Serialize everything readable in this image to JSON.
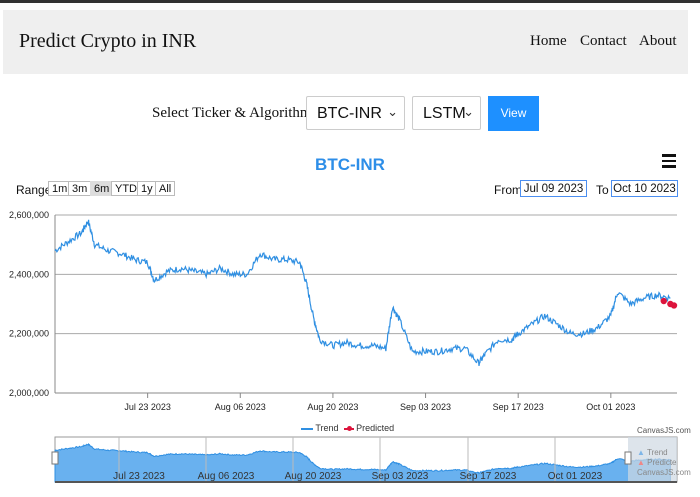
{
  "navbar": {
    "brand": "Predict Crypto in INR",
    "links": [
      {
        "label": "Home"
      },
      {
        "label": "Contact"
      },
      {
        "label": "About"
      }
    ]
  },
  "selector": {
    "label": "Select Ticker & Algorithm :",
    "ticker_value": "BTC-INR",
    "algorithm_value": "LSTM",
    "view_label": "View"
  },
  "chart": {
    "range_label": "Range",
    "range_buttons": [
      "1m",
      "3m",
      "6m",
      "YTD",
      "1y",
      "All"
    ],
    "selected_range": "6m",
    "from_label": "From",
    "from_value": "Jul 09 2023",
    "to_label": "To",
    "to_value": "Oct 10 2023",
    "legend_trend": "Trend",
    "legend_predicted": "Predicted",
    "credit": "CanvasJS.com",
    "navigator_legend_trend": "Trend",
    "navigator_legend_predicted": "Predicte",
    "navigator_credit": "CanvasJS.com"
  },
  "colors": {
    "trend": "#2f8fe2",
    "predicted": "#dc143c",
    "accent": "#1e90ff",
    "navbar_bg": "#efefef"
  },
  "chart_data": {
    "type": "line",
    "title": "BTC-INR",
    "xlabel": "",
    "ylabel": "",
    "ylim": [
      2000000,
      2600000
    ],
    "y_ticks": [
      "2,000,000",
      "2,200,000",
      "2,400,000",
      "2,600,000"
    ],
    "x_ticks": [
      "Jul 23 2023",
      "Aug 06 2023",
      "Aug 20 2023",
      "Sep 03 2023",
      "Sep 17 2023",
      "Oct 01 2023"
    ],
    "grid": true,
    "legend_position": "bottom",
    "series": [
      {
        "name": "Trend",
        "x": [
          "2023-07-09",
          "2023-07-11",
          "2023-07-13",
          "2023-07-14",
          "2023-07-15",
          "2023-07-17",
          "2023-07-19",
          "2023-07-21",
          "2023-07-23",
          "2023-07-24",
          "2023-07-26",
          "2023-07-28",
          "2023-07-30",
          "2023-08-01",
          "2023-08-03",
          "2023-08-05",
          "2023-08-07",
          "2023-08-09",
          "2023-08-11",
          "2023-08-13",
          "2023-08-15",
          "2023-08-16",
          "2023-08-17",
          "2023-08-18",
          "2023-08-20",
          "2023-08-22",
          "2023-08-24",
          "2023-08-26",
          "2023-08-28",
          "2023-08-29",
          "2023-08-30",
          "2023-09-01",
          "2023-09-03",
          "2023-09-05",
          "2023-09-07",
          "2023-09-09",
          "2023-09-11",
          "2023-09-12",
          "2023-09-14",
          "2023-09-16",
          "2023-09-17",
          "2023-09-19",
          "2023-09-21",
          "2023-09-23",
          "2023-09-25",
          "2023-09-27",
          "2023-09-29",
          "2023-10-01",
          "2023-10-02",
          "2023-10-04",
          "2023-10-06",
          "2023-10-08",
          "2023-10-10"
        ],
        "y": [
          2480000,
          2510000,
          2540000,
          2580000,
          2500000,
          2480000,
          2470000,
          2450000,
          2440000,
          2380000,
          2410000,
          2420000,
          2410000,
          2400000,
          2420000,
          2400000,
          2400000,
          2470000,
          2450000,
          2450000,
          2440000,
          2370000,
          2260000,
          2180000,
          2160000,
          2170000,
          2160000,
          2160000,
          2150000,
          2290000,
          2250000,
          2140000,
          2140000,
          2140000,
          2150000,
          2150000,
          2100000,
          2130000,
          2180000,
          2180000,
          2200000,
          2230000,
          2260000,
          2230000,
          2200000,
          2200000,
          2220000,
          2260000,
          2340000,
          2300000,
          2320000,
          2330000,
          2320000
        ]
      },
      {
        "name": "Predicted",
        "x": [
          "2023-10-09",
          "2023-10-10",
          "2023-10-11"
        ],
        "y": [
          2310000,
          2300000,
          2295000
        ]
      }
    ]
  }
}
